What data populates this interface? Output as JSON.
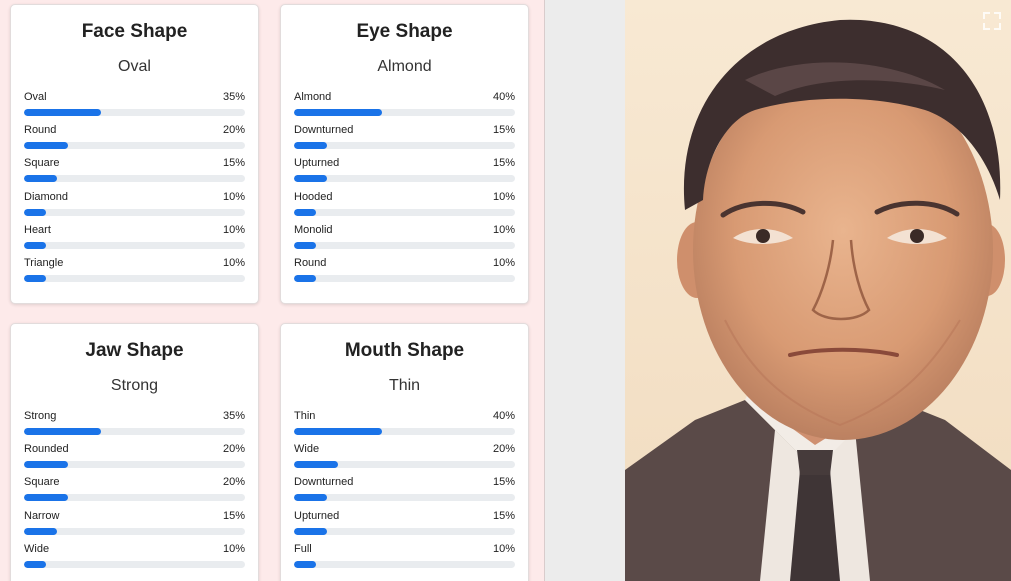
{
  "panels": [
    {
      "title": "Face Shape",
      "result": "Oval",
      "items": [
        {
          "label": "Oval",
          "pct": "35%",
          "value": 35
        },
        {
          "label": "Round",
          "pct": "20%",
          "value": 20
        },
        {
          "label": "Square",
          "pct": "15%",
          "value": 15
        },
        {
          "label": "Diamond",
          "pct": "10%",
          "value": 10
        },
        {
          "label": "Heart",
          "pct": "10%",
          "value": 10
        },
        {
          "label": "Triangle",
          "pct": "10%",
          "value": 10
        }
      ]
    },
    {
      "title": "Eye Shape",
      "result": "Almond",
      "items": [
        {
          "label": "Almond",
          "pct": "40%",
          "value": 40
        },
        {
          "label": "Downturned",
          "pct": "15%",
          "value": 15
        },
        {
          "label": "Upturned",
          "pct": "15%",
          "value": 15
        },
        {
          "label": "Hooded",
          "pct": "10%",
          "value": 10
        },
        {
          "label": "Monolid",
          "pct": "10%",
          "value": 10
        },
        {
          "label": "Round",
          "pct": "10%",
          "value": 10
        }
      ]
    },
    {
      "title": "Jaw Shape",
      "result": "Strong",
      "items": [
        {
          "label": "Strong",
          "pct": "35%",
          "value": 35
        },
        {
          "label": "Rounded",
          "pct": "20%",
          "value": 20
        },
        {
          "label": "Square",
          "pct": "20%",
          "value": 20
        },
        {
          "label": "Narrow",
          "pct": "15%",
          "value": 15
        },
        {
          "label": "Wide",
          "pct": "10%",
          "value": 10
        }
      ]
    },
    {
      "title": "Mouth Shape",
      "result": "Thin",
      "items": [
        {
          "label": "Thin",
          "pct": "40%",
          "value": 40
        },
        {
          "label": "Wide",
          "pct": "20%",
          "value": 20
        },
        {
          "label": "Downturned",
          "pct": "15%",
          "value": 15
        },
        {
          "label": "Upturned",
          "pct": "15%",
          "value": 15
        },
        {
          "label": "Full",
          "pct": "10%",
          "value": 10
        }
      ]
    }
  ],
  "colors": {
    "bar": "#1a73e8",
    "track": "#e9ecef",
    "panel_bg": "#fdeaea"
  },
  "icons": {
    "expand": "expand-icon"
  }
}
